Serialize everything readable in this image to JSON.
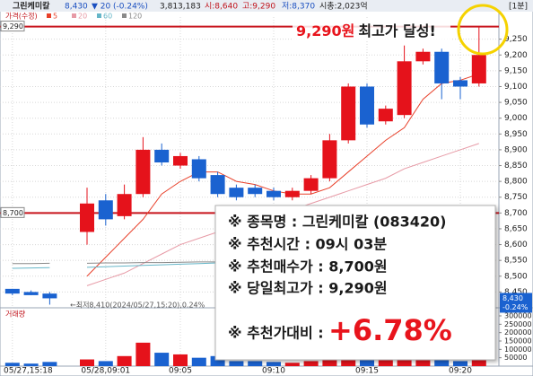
{
  "header": {
    "name": "그린케미칼",
    "price": "8,430",
    "change": "▼ 20",
    "change_rate": "(-0.24%)",
    "volume": "3,813,183",
    "open": "시:8,640",
    "high": "고:9,290",
    "low": "저:8,370",
    "market_cap": "시총:2,023억",
    "period": "[1분]"
  },
  "chart_data": {
    "type": "candlestick",
    "legend_title": "가격(수정)",
    "categories": [
      "05/27,15:18",
      null,
      null,
      null,
      null,
      "05/28,09:01",
      null,
      null,
      null,
      "09:05",
      null,
      null,
      null,
      null,
      "09:10",
      null,
      null,
      null,
      null,
      "09:15",
      null,
      null,
      null,
      null,
      "09:20",
      null
    ],
    "open": [
      8460,
      8450,
      8445,
      null,
      8640,
      8740,
      8690,
      8760,
      8900,
      8850,
      8870,
      8820,
      8780,
      8780,
      8770,
      8750,
      8770,
      8810,
      8930,
      9100,
      8990,
      9010,
      9180,
      9210,
      9120,
      9110
    ],
    "high": [
      8460,
      8455,
      8450,
      null,
      8780,
      8760,
      8790,
      8940,
      8920,
      8890,
      8880,
      8830,
      8790,
      8790,
      8780,
      8780,
      8820,
      8950,
      9110,
      9110,
      9040,
      9230,
      9220,
      9220,
      9130,
      9290
    ],
    "low": [
      8440,
      8440,
      8410,
      null,
      8600,
      8660,
      8680,
      8750,
      8850,
      8840,
      8800,
      8750,
      8740,
      8750,
      8740,
      8740,
      8760,
      8800,
      8920,
      8970,
      8980,
      9000,
      9170,
      9060,
      9060,
      9100
    ],
    "close": [
      8445,
      8440,
      8430,
      null,
      8730,
      8680,
      8760,
      8900,
      8860,
      8880,
      8810,
      8760,
      8750,
      8760,
      8750,
      8770,
      8810,
      8930,
      9100,
      8980,
      9030,
      9180,
      9210,
      9110,
      9100,
      9200
    ],
    "up_color": "#e5121b",
    "down_color": "#1a62d0",
    "moving_averages": [
      {
        "name": "5",
        "color": "#e8402a",
        "values": [
          null,
          null,
          null,
          null,
          8500,
          8560,
          8620,
          8680,
          8760,
          8800,
          8830,
          8830,
          8800,
          8790,
          8770,
          8760,
          8760,
          8780,
          8830,
          8880,
          8930,
          8970,
          9060,
          9110,
          9120,
          9140
        ]
      },
      {
        "name": "20",
        "color": "#e79aa6",
        "values": [
          null,
          null,
          null,
          null,
          8470,
          8490,
          8510,
          8540,
          8570,
          8600,
          8620,
          8640,
          8660,
          8680,
          8700,
          8710,
          8730,
          8750,
          8770,
          8790,
          8810,
          8840,
          8860,
          8880,
          8900,
          8920
        ]
      },
      {
        "name": "60",
        "color": "#66b6c8",
        "values": [
          8525,
          8526,
          8527,
          null,
          8528,
          8530,
          8532,
          8534,
          8536,
          8538,
          8540,
          8542,
          8543,
          8544,
          8545,
          8546,
          8548,
          8550,
          8552,
          8555,
          8558,
          8561,
          8564,
          8567,
          8570,
          8573
        ]
      },
      {
        "name": "120",
        "color": "#8a8a8a",
        "values": [
          8540,
          8540,
          8541,
          null,
          8541,
          8542,
          8542,
          8543,
          8543,
          8544,
          8545,
          8545,
          8546,
          8547,
          8547,
          8548,
          8549,
          8550,
          8551,
          8552,
          8553,
          8554,
          8555,
          8556,
          8557,
          8558
        ]
      }
    ],
    "ylim": [
      8400,
      9320
    ],
    "yticks": [
      {
        "value": 9250,
        "label": "9,250"
      },
      {
        "value": 9200,
        "label": "9,200"
      },
      {
        "value": 9150,
        "label": "9,150"
      },
      {
        "value": 9100,
        "label": "9,100"
      },
      {
        "value": 9050,
        "label": "9,050"
      },
      {
        "value": 9000,
        "label": "9,000"
      },
      {
        "value": 8950,
        "label": "8,950"
      },
      {
        "value": 8900,
        "label": "8,900"
      },
      {
        "value": 8850,
        "label": "8,850"
      },
      {
        "value": 8800,
        "label": "8,800"
      },
      {
        "value": 8750,
        "label": "8,750"
      },
      {
        "value": 8700,
        "label": "8,700"
      },
      {
        "value": 8650,
        "label": "8,650"
      },
      {
        "value": 8600,
        "label": "8,600"
      },
      {
        "value": 8550,
        "label": "8,550"
      },
      {
        "value": 8500,
        "label": "8,500"
      },
      {
        "value": 8450,
        "label": "8,450"
      }
    ],
    "hlines": [
      {
        "value": 9290,
        "label": "9,290"
      },
      {
        "value": 8700,
        "label": "8,700"
      }
    ],
    "last_price": {
      "value": 8430,
      "label": "8,430"
    },
    "last_change": "-0.24%",
    "low_note": "←최저8,410(2024/05/27,15:20),0.24%",
    "volume_title": "거래량",
    "volume": [
      20000,
      15000,
      25000,
      null,
      40000,
      30000,
      60000,
      140000,
      80000,
      70000,
      50000,
      60000,
      30000,
      30000,
      25000,
      20000,
      30000,
      60000,
      110000,
      90000,
      40000,
      120000,
      50000,
      80000,
      30000,
      70000
    ],
    "vlim": [
      0,
      300000
    ],
    "vticks": [
      50000,
      100000,
      150000,
      200000,
      250000,
      300000
    ],
    "grid": true,
    "callout": {
      "price": "9,290원",
      "text": "최고가 달성!"
    }
  },
  "info_box": {
    "rows": [
      "※ 종목명 : 그린케미칼 (083420)",
      "※ 추천시간 : 09시 03분",
      "※ 추천매수가 : 8,700원",
      "※ 당일최고가 : 9,290원"
    ],
    "last_label": "※ 추천가대비 :",
    "last_value": "+6.78%"
  }
}
